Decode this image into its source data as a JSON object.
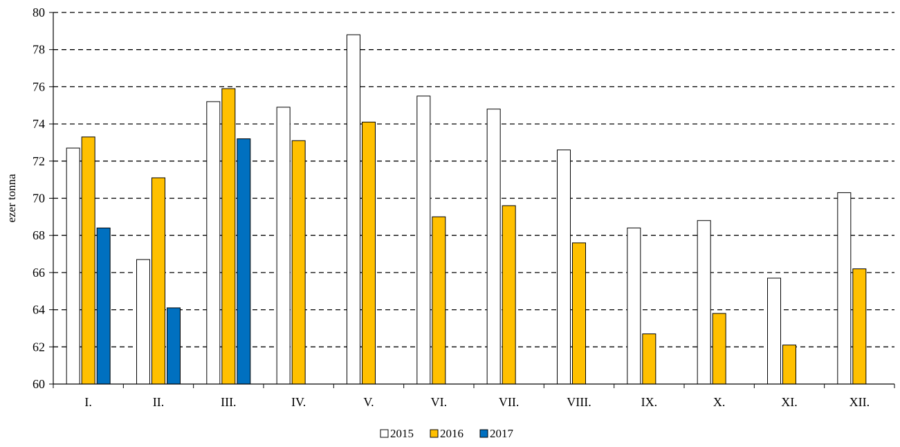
{
  "chart_data": {
    "type": "bar",
    "title": "",
    "xlabel": "",
    "ylabel": "ezer tonna",
    "ylim": [
      60,
      80
    ],
    "yticks": [
      60,
      62,
      64,
      66,
      68,
      70,
      72,
      74,
      76,
      78,
      80
    ],
    "grid": true,
    "legend_position": "bottom-center",
    "categories": [
      "I.",
      "II.",
      "III.",
      "IV.",
      "V.",
      "VI.",
      "VII.",
      "VIII.",
      "IX.",
      "X.",
      "XI.",
      "XII."
    ],
    "series": [
      {
        "name": "2015",
        "color": "#ffffff",
        "values": [
          72.7,
          66.7,
          75.2,
          74.9,
          78.8,
          75.5,
          74.8,
          72.6,
          68.4,
          68.8,
          65.7,
          70.3
        ]
      },
      {
        "name": "2016",
        "color": "#ffc000",
        "values": [
          73.3,
          71.1,
          75.9,
          73.1,
          74.1,
          69.0,
          69.6,
          67.6,
          62.7,
          63.8,
          62.1,
          66.2
        ]
      },
      {
        "name": "2017",
        "color": "#0070c0",
        "values": [
          68.4,
          64.1,
          73.2,
          null,
          null,
          null,
          null,
          null,
          null,
          null,
          null,
          null
        ]
      }
    ]
  }
}
